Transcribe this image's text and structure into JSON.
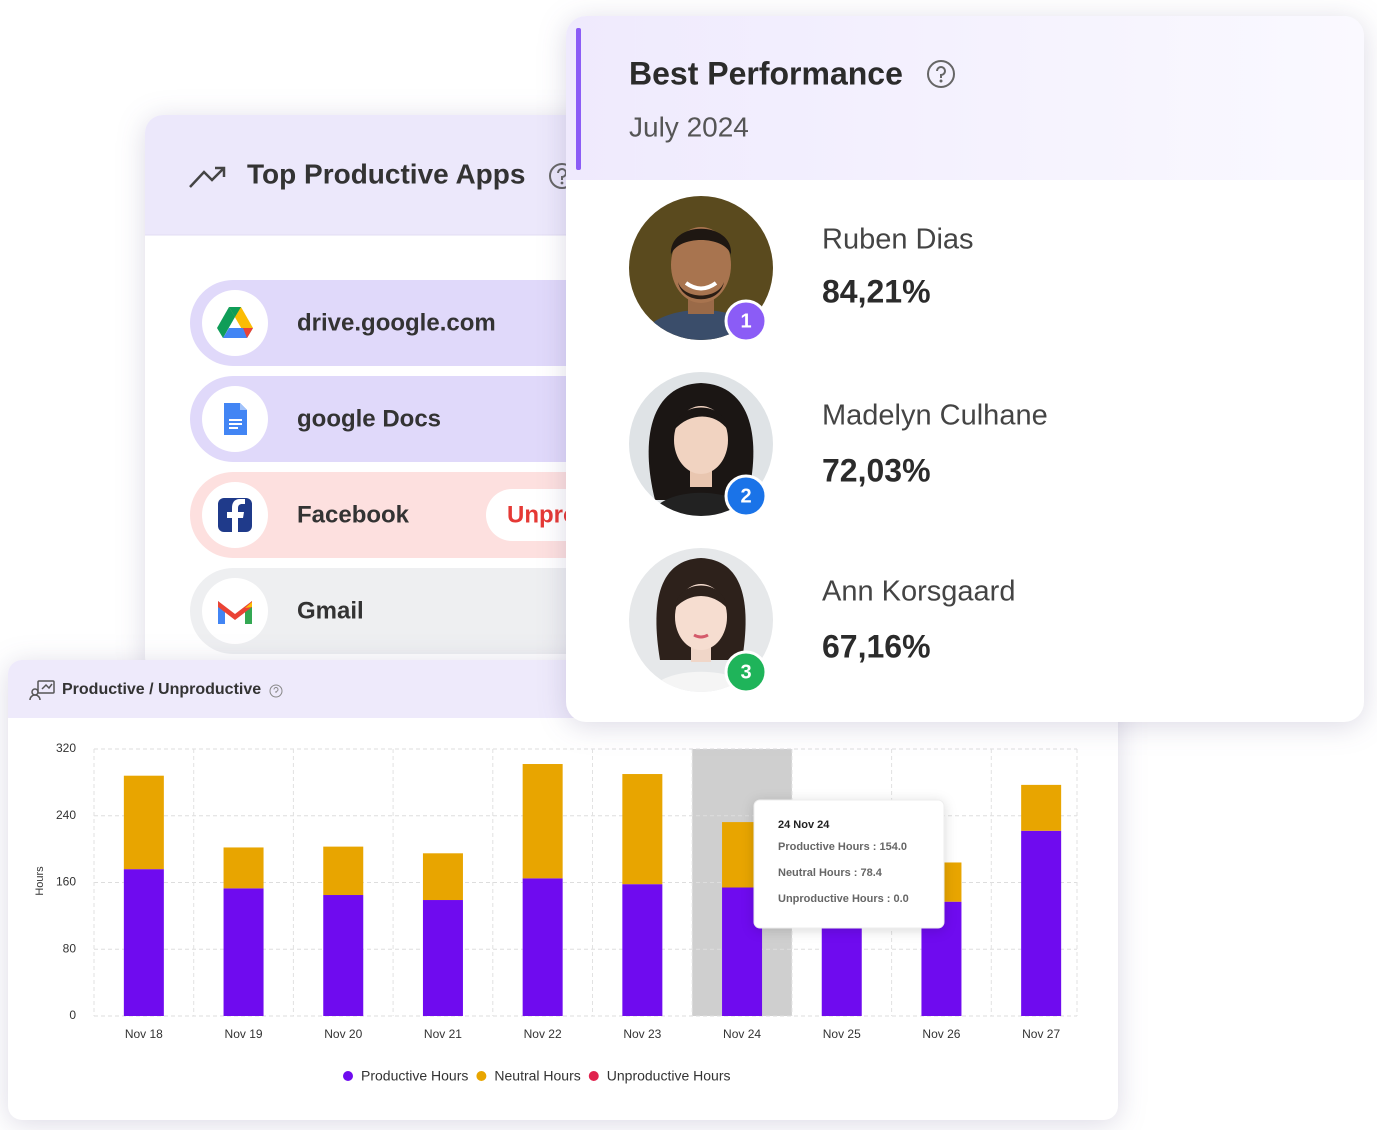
{
  "apps_card": {
    "title": "Top Productive Apps",
    "apps": [
      {
        "name": "drive.google.com"
      },
      {
        "name": "google Docs"
      },
      {
        "name": "Facebook",
        "tag": "Unproductive"
      },
      {
        "name": "Gmail"
      }
    ]
  },
  "best_performance": {
    "title": "Best Performance",
    "period": "July 2024",
    "people": [
      {
        "rank": 1,
        "name": "Ruben Dias",
        "score": "84,21%"
      },
      {
        "rank": 2,
        "name": "Madelyn Culhane",
        "score": "72,03%"
      },
      {
        "rank": 3,
        "name": "Ann Korsgaard",
        "score": "67,16%"
      }
    ]
  },
  "chart_data": {
    "type": "bar",
    "stacked": true,
    "title": "Productive / Unproductive",
    "y_label": "Hours",
    "categories": [
      "Nov 18",
      "Nov 19",
      "Nov 20",
      "Nov 21",
      "Nov 22",
      "Nov 23",
      "Nov 24",
      "Nov 25",
      "Nov 26",
      "Nov 27"
    ],
    "series": [
      {
        "name": "Productive Hours",
        "color": "#6f0bef",
        "values": [
          176,
          153,
          145,
          139,
          165,
          158,
          154.0,
          150,
          137,
          222
        ]
      },
      {
        "name": "Neutral Hours",
        "color": "#e8a500",
        "values": [
          112,
          49,
          58,
          56,
          137,
          132,
          78.4,
          65,
          47,
          55
        ]
      },
      {
        "name": "Unproductive Hours",
        "color": "#e0234e",
        "values": [
          0,
          0,
          0,
          0,
          0,
          0,
          0.0,
          0,
          0,
          0
        ]
      }
    ],
    "ylim": [
      0,
      320
    ],
    "yticks": [
      0,
      80,
      160,
      240,
      320
    ],
    "grid": true,
    "legend": "bottom",
    "tooltip": {
      "title": "24 Nov 24",
      "lines": [
        "Productive Hours : 154.0",
        "Neutral Hours : 78.4",
        "Unproductive Hours : 0.0"
      ]
    }
  }
}
